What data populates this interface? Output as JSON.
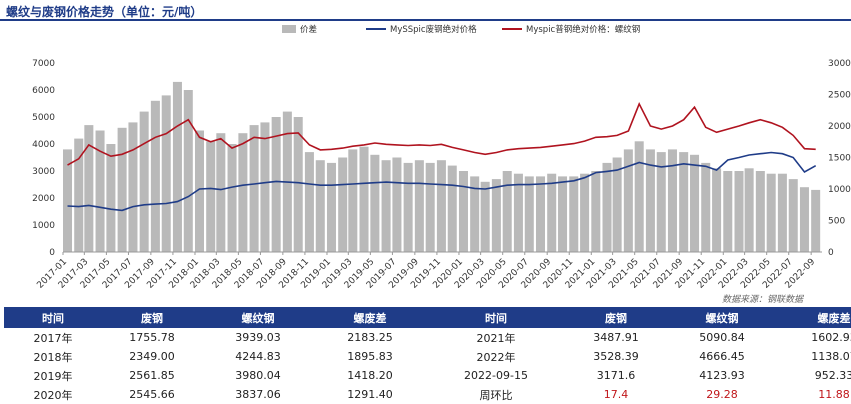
{
  "title": "螺纹与废钢价格走势（单位：元/吨）",
  "source_note": "数据来源：钢联数据",
  "chart_data": {
    "type": "bar+line",
    "title": "螺纹与废钢价格走势（单位：元/吨）",
    "legend": [
      "价差",
      "MySSpic废钢绝对价格",
      "Myspic普钢绝对价格：螺纹钢"
    ],
    "legend_placement": "top",
    "colors": {
      "spread": "#b9b9b9",
      "scrap": "#1f3c88",
      "rebar": "#b0131f"
    },
    "x_ticks": [
      "2017-01",
      "2017-03",
      "2017-05",
      "2017-07",
      "2017-09",
      "2017-11",
      "2018-01",
      "2018-03",
      "2018-05",
      "2018-07",
      "2018-09",
      "2018-11",
      "2019-01",
      "2019-03",
      "2019-05",
      "2019-07",
      "2019-09",
      "2019-11",
      "2020-01",
      "2020-03",
      "2020-05",
      "2020-07",
      "2020-09",
      "2020-11",
      "2021-01",
      "2021-03",
      "2021-05",
      "2021-07",
      "2021-09",
      "2021-11",
      "2022-01",
      "2022-03",
      "2022-05",
      "2022-07",
      "2022-09"
    ],
    "y_left": {
      "ticks": [
        0,
        1000,
        2000,
        3000,
        4000,
        5000,
        6000,
        7000
      ],
      "range": [
        0,
        7000
      ]
    },
    "y_right": {
      "ticks": [
        0,
        500,
        1000,
        1500,
        2000,
        2500,
        3000
      ],
      "range": [
        0,
        3000
      ]
    },
    "series": [
      {
        "name": "价差",
        "axis": "left",
        "kind": "bar",
        "x": [
          "2017-01",
          "2017-02",
          "2017-03",
          "2017-04",
          "2017-05",
          "2017-06",
          "2017-07",
          "2017-08",
          "2017-09",
          "2017-10",
          "2017-11",
          "2017-12",
          "2018-01",
          "2018-02",
          "2018-03",
          "2018-04",
          "2018-05",
          "2018-06",
          "2018-07",
          "2018-08",
          "2018-09",
          "2018-10",
          "2018-11",
          "2018-12",
          "2019-01",
          "2019-02",
          "2019-03",
          "2019-04",
          "2019-05",
          "2019-06",
          "2019-07",
          "2019-08",
          "2019-09",
          "2019-10",
          "2019-11",
          "2019-12",
          "2020-01",
          "2020-02",
          "2020-03",
          "2020-04",
          "2020-05",
          "2020-06",
          "2020-07",
          "2020-08",
          "2020-09",
          "2020-10",
          "2020-11",
          "2020-12",
          "2021-01",
          "2021-02",
          "2021-03",
          "2021-04",
          "2021-05",
          "2021-06",
          "2021-07",
          "2021-08",
          "2021-09",
          "2021-10",
          "2021-11",
          "2021-12",
          "2022-01",
          "2022-02",
          "2022-03",
          "2022-04",
          "2022-05",
          "2022-06",
          "2022-07",
          "2022-08",
          "2022-09"
        ],
        "values": [
          3800,
          4200,
          4700,
          4500,
          4000,
          4600,
          4800,
          5200,
          5600,
          5800,
          6300,
          6000,
          4500,
          4100,
          4400,
          4000,
          4400,
          4700,
          4800,
          5000,
          5200,
          5000,
          3700,
          3400,
          3300,
          3500,
          3800,
          3900,
          3600,
          3400,
          3500,
          3300,
          3400,
          3300,
          3400,
          3200,
          3000,
          2800,
          2600,
          2700,
          3000,
          2900,
          2800,
          2800,
          2900,
          2800,
          2800,
          2900,
          3000,
          3300,
          3500,
          3800,
          4100,
          3800,
          3700,
          3800,
          3700,
          3600,
          3300,
          3100,
          3000,
          3000,
          3100,
          3000,
          2900,
          2900,
          2700,
          2400,
          2300
        ]
      },
      {
        "name": "MySSpic废钢绝对价格",
        "axis": "right",
        "kind": "line",
        "x": [
          "2017-01",
          "2017-02",
          "2017-03",
          "2017-04",
          "2017-05",
          "2017-06",
          "2017-07",
          "2017-08",
          "2017-09",
          "2017-10",
          "2017-11",
          "2017-12",
          "2018-01",
          "2018-02",
          "2018-03",
          "2018-04",
          "2018-05",
          "2018-06",
          "2018-07",
          "2018-08",
          "2018-09",
          "2018-10",
          "2018-11",
          "2018-12",
          "2019-01",
          "2019-02",
          "2019-03",
          "2019-04",
          "2019-05",
          "2019-06",
          "2019-07",
          "2019-08",
          "2019-09",
          "2019-10",
          "2019-11",
          "2019-12",
          "2020-01",
          "2020-02",
          "2020-03",
          "2020-04",
          "2020-05",
          "2020-06",
          "2020-07",
          "2020-08",
          "2020-09",
          "2020-10",
          "2020-11",
          "2020-12",
          "2021-01",
          "2021-02",
          "2021-03",
          "2021-04",
          "2021-05",
          "2021-06",
          "2021-07",
          "2021-08",
          "2021-09",
          "2021-10",
          "2021-11",
          "2021-12",
          "2022-01",
          "2022-02",
          "2022-03",
          "2022-04",
          "2022-05",
          "2022-06",
          "2022-07",
          "2022-08",
          "2022-09"
        ],
        "values": [
          730,
          720,
          740,
          710,
          680,
          660,
          720,
          750,
          760,
          770,
          800,
          880,
          1000,
          1010,
          990,
          1030,
          1060,
          1080,
          1100,
          1120,
          1110,
          1100,
          1080,
          1060,
          1060,
          1070,
          1080,
          1090,
          1100,
          1110,
          1100,
          1090,
          1090,
          1080,
          1070,
          1060,
          1040,
          1010,
          1000,
          1030,
          1060,
          1070,
          1070,
          1080,
          1090,
          1110,
          1130,
          1180,
          1260,
          1280,
          1300,
          1360,
          1420,
          1380,
          1350,
          1370,
          1400,
          1380,
          1360,
          1300,
          1460,
          1500,
          1540,
          1560,
          1580,
          1560,
          1500,
          1270,
          1370
        ]
      },
      {
        "name": "Myspic普钢绝对价格：螺纹钢",
        "axis": "right",
        "kind": "line",
        "x": [
          "2017-01",
          "2017-02",
          "2017-03",
          "2017-04",
          "2017-05",
          "2017-06",
          "2017-07",
          "2017-08",
          "2017-09",
          "2017-10",
          "2017-11",
          "2017-12",
          "2018-01",
          "2018-02",
          "2018-03",
          "2018-04",
          "2018-05",
          "2018-06",
          "2018-07",
          "2018-08",
          "2018-09",
          "2018-10",
          "2018-11",
          "2018-12",
          "2019-01",
          "2019-02",
          "2019-03",
          "2019-04",
          "2019-05",
          "2019-06",
          "2019-07",
          "2019-08",
          "2019-09",
          "2019-10",
          "2019-11",
          "2019-12",
          "2020-01",
          "2020-02",
          "2020-03",
          "2020-04",
          "2020-05",
          "2020-06",
          "2020-07",
          "2020-08",
          "2020-09",
          "2020-10",
          "2020-11",
          "2020-12",
          "2021-01",
          "2021-02",
          "2021-03",
          "2021-04",
          "2021-05",
          "2021-06",
          "2021-07",
          "2021-08",
          "2021-09",
          "2021-10",
          "2021-11",
          "2021-12",
          "2022-01",
          "2022-02",
          "2022-03",
          "2022-04",
          "2022-05",
          "2022-06",
          "2022-07",
          "2022-08",
          "2022-09"
        ],
        "values": [
          1380,
          1480,
          1700,
          1600,
          1520,
          1550,
          1620,
          1720,
          1820,
          1880,
          2000,
          2100,
          1820,
          1750,
          1800,
          1650,
          1720,
          1820,
          1800,
          1840,
          1880,
          1890,
          1700,
          1620,
          1630,
          1650,
          1680,
          1700,
          1730,
          1710,
          1700,
          1690,
          1700,
          1690,
          1710,
          1660,
          1620,
          1580,
          1550,
          1580,
          1620,
          1640,
          1650,
          1660,
          1680,
          1700,
          1720,
          1760,
          1820,
          1830,
          1850,
          1920,
          2350,
          2000,
          1950,
          2000,
          2100,
          2300,
          1980,
          1900,
          1950,
          2000,
          2050,
          2100,
          2050,
          1980,
          1850,
          1640,
          1630
        ]
      }
    ]
  },
  "table": {
    "headers": [
      "时间",
      "废钢",
      "螺纹钢",
      "螺废差",
      "时间",
      "废钢",
      "螺纹钢",
      "螺废差"
    ],
    "rows": [
      [
        "2017年",
        "1755.78",
        "3939.03",
        "2183.25",
        "2021年",
        "3487.91",
        "5090.84",
        "1602.93"
      ],
      [
        "2018年",
        "2349.00",
        "4244.83",
        "1895.83",
        "2022年",
        "3528.39",
        "4666.45",
        "1138.07"
      ],
      [
        "2019年",
        "2561.85",
        "3980.04",
        "1418.20",
        "2022-09-15",
        "3171.6",
        "4123.93",
        "952.33"
      ],
      [
        "2020年",
        "2545.66",
        "3837.06",
        "1291.40",
        "周环比",
        "17.4",
        "29.28",
        "11.88"
      ]
    ]
  }
}
